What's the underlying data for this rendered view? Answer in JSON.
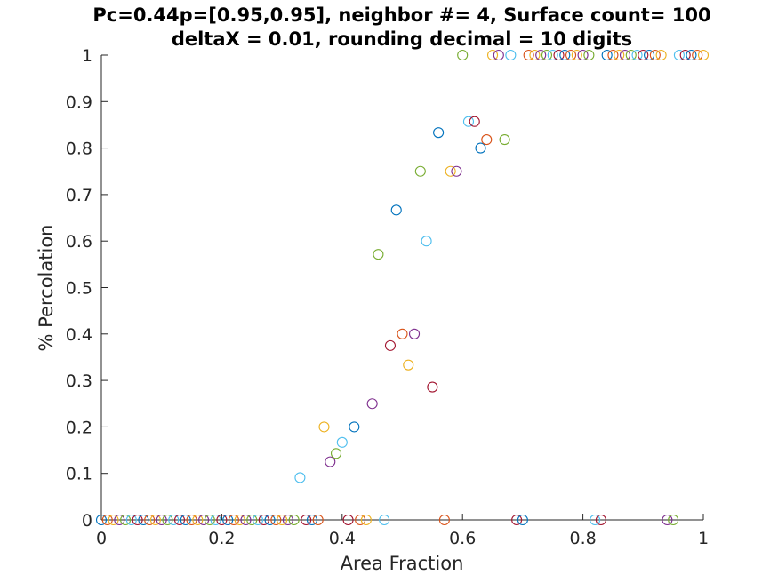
{
  "chart_data": {
    "type": "scatter",
    "title": [
      "Pc=0.44p=[0.95,0.95], neighbor #= 4, Surface count= 100",
      "deltaX = 0.01, rounding decimal = 10 digits"
    ],
    "xlabel": "Area Fraction",
    "ylabel": "% Percolation",
    "xlim": [
      0,
      1
    ],
    "ylim": [
      0,
      1
    ],
    "xticks": [
      0,
      0.2,
      0.4,
      0.6,
      0.8,
      1
    ],
    "xtick_labels": [
      "0",
      "0.2",
      "0.4",
      "0.6",
      "0.8",
      "1"
    ],
    "yticks": [
      0,
      0.1,
      0.2,
      0.3,
      0.4,
      0.5,
      0.6,
      0.7,
      0.8,
      0.9,
      1
    ],
    "ytick_labels": [
      "0",
      "0.1",
      "0.2",
      "0.3",
      "0.4",
      "0.5",
      "0.6",
      "0.7",
      "0.8",
      "0.9",
      "1"
    ],
    "grid": false,
    "legend": "none",
    "color_cycle": [
      "#0072BD",
      "#D95319",
      "#EDB120",
      "#7E2F8E",
      "#77AC30",
      "#4DBEEE",
      "#A2142F"
    ],
    "points": [
      {
        "x": 0.0,
        "y": 0
      },
      {
        "x": 0.01,
        "y": 0
      },
      {
        "x": 0.02,
        "y": 0
      },
      {
        "x": 0.03,
        "y": 0
      },
      {
        "x": 0.04,
        "y": 0
      },
      {
        "x": 0.05,
        "y": 0
      },
      {
        "x": 0.06,
        "y": 0
      },
      {
        "x": 0.07,
        "y": 0
      },
      {
        "x": 0.08,
        "y": 0
      },
      {
        "x": 0.09,
        "y": 0
      },
      {
        "x": 0.1,
        "y": 0
      },
      {
        "x": 0.11,
        "y": 0
      },
      {
        "x": 0.12,
        "y": 0
      },
      {
        "x": 0.13,
        "y": 0
      },
      {
        "x": 0.14,
        "y": 0
      },
      {
        "x": 0.15,
        "y": 0
      },
      {
        "x": 0.16,
        "y": 0
      },
      {
        "x": 0.17,
        "y": 0
      },
      {
        "x": 0.18,
        "y": 0
      },
      {
        "x": 0.19,
        "y": 0
      },
      {
        "x": 0.2,
        "y": 0
      },
      {
        "x": 0.21,
        "y": 0
      },
      {
        "x": 0.22,
        "y": 0
      },
      {
        "x": 0.23,
        "y": 0
      },
      {
        "x": 0.24,
        "y": 0
      },
      {
        "x": 0.25,
        "y": 0
      },
      {
        "x": 0.26,
        "y": 0
      },
      {
        "x": 0.27,
        "y": 0
      },
      {
        "x": 0.28,
        "y": 0
      },
      {
        "x": 0.29,
        "y": 0
      },
      {
        "x": 0.3,
        "y": 0
      },
      {
        "x": 0.31,
        "y": 0
      },
      {
        "x": 0.32,
        "y": 0
      },
      {
        "x": 0.33,
        "y": 0.0909
      },
      {
        "x": 0.34,
        "y": 0
      },
      {
        "x": 0.35,
        "y": 0
      },
      {
        "x": 0.36,
        "y": 0
      },
      {
        "x": 0.37,
        "y": 0.2
      },
      {
        "x": 0.38,
        "y": 0.125
      },
      {
        "x": 0.39,
        "y": 0.1429
      },
      {
        "x": 0.4,
        "y": 0.1667
      },
      {
        "x": 0.41,
        "y": 0
      },
      {
        "x": 0.42,
        "y": 0.2
      },
      {
        "x": 0.43,
        "y": 0
      },
      {
        "x": 0.44,
        "y": 0
      },
      {
        "x": 0.45,
        "y": 0.25
      },
      {
        "x": 0.46,
        "y": 0.5714
      },
      {
        "x": 0.47,
        "y": 0
      },
      {
        "x": 0.48,
        "y": 0.375
      },
      {
        "x": 0.49,
        "y": 0.6667
      },
      {
        "x": 0.5,
        "y": 0.4
      },
      {
        "x": 0.51,
        "y": 0.3333
      },
      {
        "x": 0.52,
        "y": 0.4
      },
      {
        "x": 0.53,
        "y": 0.75
      },
      {
        "x": 0.54,
        "y": 0.6
      },
      {
        "x": 0.55,
        "y": 0.2857
      },
      {
        "x": 0.56,
        "y": 0.8333
      },
      {
        "x": 0.57,
        "y": 0
      },
      {
        "x": 0.58,
        "y": 0.75
      },
      {
        "x": 0.59,
        "y": 0.75
      },
      {
        "x": 0.6,
        "y": 1
      },
      {
        "x": 0.61,
        "y": 0.8571
      },
      {
        "x": 0.62,
        "y": 0.8571
      },
      {
        "x": 0.63,
        "y": 0.8
      },
      {
        "x": 0.64,
        "y": 0.8182
      },
      {
        "x": 0.65,
        "y": 1
      },
      {
        "x": 0.66,
        "y": 1
      },
      {
        "x": 0.67,
        "y": 0.8182
      },
      {
        "x": 0.68,
        "y": 1
      },
      {
        "x": 0.69,
        "y": 0
      },
      {
        "x": 0.7,
        "y": 0
      },
      {
        "x": 0.71,
        "y": 1
      },
      {
        "x": 0.72,
        "y": 1
      },
      {
        "x": 0.73,
        "y": 1
      },
      {
        "x": 0.74,
        "y": 1
      },
      {
        "x": 0.75,
        "y": 1
      },
      {
        "x": 0.76,
        "y": 1
      },
      {
        "x": 0.77,
        "y": 1
      },
      {
        "x": 0.78,
        "y": 1
      },
      {
        "x": 0.79,
        "y": 1
      },
      {
        "x": 0.8,
        "y": 1
      },
      {
        "x": 0.81,
        "y": 1
      },
      {
        "x": 0.82,
        "y": 0
      },
      {
        "x": 0.83,
        "y": 0
      },
      {
        "x": 0.84,
        "y": 1
      },
      {
        "x": 0.85,
        "y": 1
      },
      {
        "x": 0.86,
        "y": 1
      },
      {
        "x": 0.87,
        "y": 1
      },
      {
        "x": 0.88,
        "y": 1
      },
      {
        "x": 0.89,
        "y": 1
      },
      {
        "x": 0.9,
        "y": 1
      },
      {
        "x": 0.91,
        "y": 1
      },
      {
        "x": 0.92,
        "y": 1
      },
      {
        "x": 0.93,
        "y": 1
      },
      {
        "x": 0.94,
        "y": 0
      },
      {
        "x": 0.95,
        "y": 0
      },
      {
        "x": 0.96,
        "y": 1
      },
      {
        "x": 0.97,
        "y": 1
      },
      {
        "x": 0.98,
        "y": 1
      },
      {
        "x": 0.99,
        "y": 1
      },
      {
        "x": 1.0,
        "y": 1
      }
    ]
  }
}
